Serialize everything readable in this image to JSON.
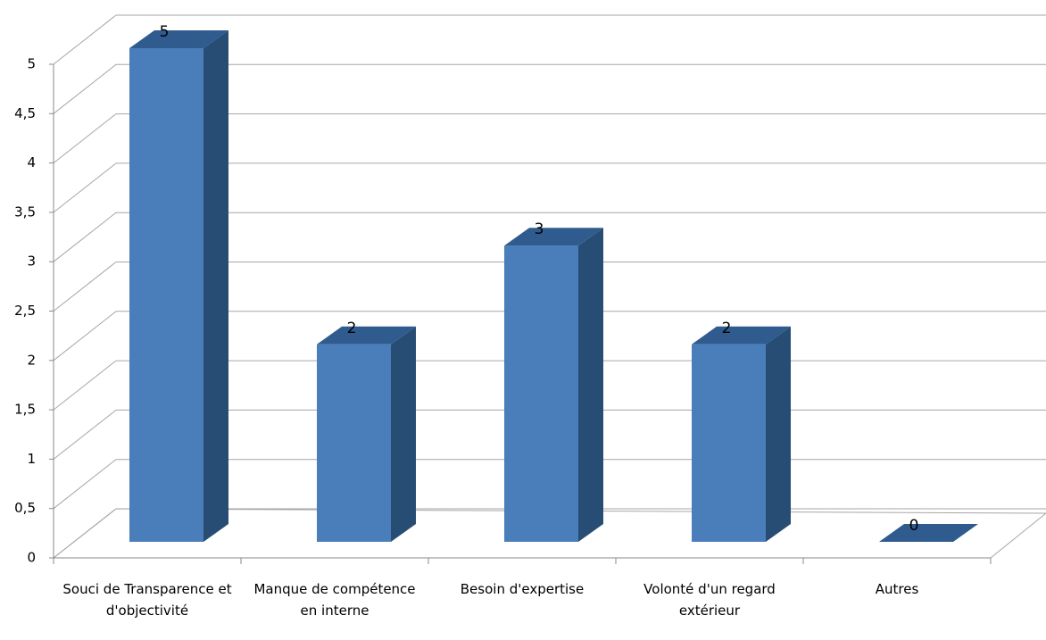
{
  "chart_data": {
    "type": "bar3d",
    "categories": [
      "Souci de Transparence et d'objectivité",
      "Manque de compétence en interne",
      "Besoin d'expertise",
      "Volonté d'un regard extérieur",
      "Autres"
    ],
    "values": [
      5,
      2,
      3,
      2,
      0
    ],
    "color": "#4a7ebb",
    "ylim": [
      0,
      5
    ],
    "yticks": [
      0,
      {
        "value": 0.5,
        "label": "0,5"
      },
      1,
      {
        "value": 1.5,
        "label": "1,5"
      },
      2,
      {
        "value": 2.5,
        "label": "2,5"
      },
      3,
      {
        "value": 3.5,
        "label": "3,5"
      },
      4,
      {
        "value": 4.5,
        "label": "4,5"
      },
      5
    ],
    "grid": true
  }
}
